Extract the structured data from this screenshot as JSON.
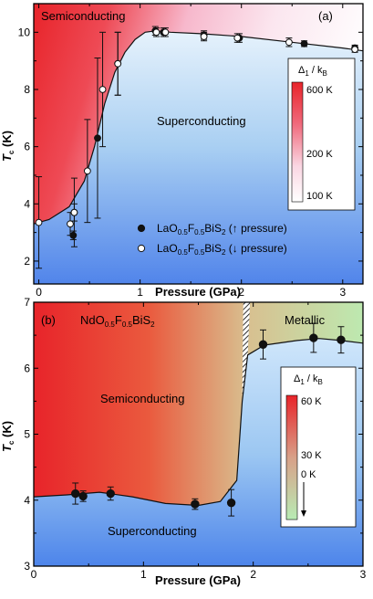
{
  "chart_data": [
    {
      "type": "area",
      "panel_label": "(a)",
      "compound": {
        "pre": "LaO",
        "s1": "0.5",
        "mid": "F",
        "s2": "0.5",
        "post": "BiS",
        "s3": "2"
      },
      "xlabel": "Pressure (GPa)",
      "ylabel_main": "T",
      "ylabel_sub": "c",
      "ylabel_unit": " (K)",
      "xlim": [
        -0.05,
        3.2
      ],
      "ylim": [
        1.2,
        11.0
      ],
      "xticks": [
        "0",
        "1",
        "2",
        "3"
      ],
      "yticks": [
        "2",
        "4",
        "6",
        "8",
        "10"
      ],
      "grid": false,
      "regions": {
        "top_left": "Semiconducting",
        "middle": "Superconducting"
      },
      "colorbar": {
        "title_main": "Δ",
        "title_sub1": "1",
        "title_rest": " / k",
        "title_sub2": "B",
        "labels": [
          "600 K",
          "200 K",
          "100 K"
        ],
        "colors": [
          "#e8242a",
          "#ffffff"
        ]
      },
      "legend": [
        {
          "marker": "filled",
          "direction": "↑ pressure"
        },
        {
          "marker": "open",
          "direction": "↓ pressure"
        }
      ],
      "legend_position": "bottom-right",
      "boundary": {
        "x": [
          -0.05,
          0.0,
          0.1,
          0.3,
          0.45,
          0.55,
          0.65,
          0.75,
          0.85,
          0.95,
          1.05,
          1.15,
          1.3,
          1.6,
          2.0,
          2.5,
          3.0,
          3.2
        ],
        "y": [
          3.3,
          3.35,
          3.45,
          3.9,
          4.8,
          6.0,
          7.5,
          8.6,
          9.3,
          9.75,
          10.0,
          10.05,
          10.0,
          9.95,
          9.85,
          9.65,
          9.45,
          9.35
        ]
      },
      "series": [
        {
          "marker": "filled",
          "x": [
            0.34,
            0.35,
            0.58,
            0.78,
            1.15,
            1.23,
            1.63,
            1.98,
            2.62,
            3.12
          ],
          "y": [
            2.9,
            3.7,
            6.3,
            8.9,
            10.05,
            10.0,
            9.9,
            9.8,
            9.6,
            9.45
          ],
          "err": [
            0.15,
            0.3,
            2.8,
            1.1,
            0.15,
            0.15,
            0.15,
            0.15,
            0.1,
            0.1
          ]
        },
        {
          "marker": "open",
          "x": [
            0.0,
            0.31,
            0.35,
            0.48,
            0.63,
            0.78,
            1.16,
            1.25,
            1.63,
            1.96,
            2.47,
            3.12
          ],
          "y": [
            3.35,
            3.3,
            3.7,
            5.15,
            8.0,
            8.9,
            10.0,
            10.0,
            9.85,
            9.8,
            9.65,
            9.4
          ],
          "err": [
            1.6,
            0.4,
            1.2,
            1.8,
            2.0,
            1.1,
            0.15,
            0.15,
            0.15,
            0.15,
            0.15,
            0.1
          ]
        }
      ]
    },
    {
      "type": "area",
      "panel_label": "(b)",
      "compound": {
        "pre": "NdO",
        "s1": "0.5",
        "mid": "F",
        "s2": "0.5",
        "post": "BiS",
        "s3": "2"
      },
      "xlabel": "Pressure (GPa)",
      "ylabel_main": "T",
      "ylabel_sub": "c",
      "ylabel_unit": " (K)",
      "xlim": [
        0,
        3
      ],
      "ylim": [
        3,
        7
      ],
      "xticks": [
        "0",
        "1",
        "2",
        "3"
      ],
      "yticks": [
        "3",
        "4",
        "5",
        "6",
        "7"
      ],
      "grid": false,
      "regions": {
        "left": "Semiconducting",
        "bottom": "Superconducting",
        "top_right": "Metallic"
      },
      "colorbar": {
        "title_main": "Δ",
        "title_sub1": "1",
        "title_rest": " / k",
        "title_sub2": "B",
        "labels": [
          "60 K",
          "30 K",
          "0 K"
        ],
        "colors": [
          "#e8242a",
          "#b8ecb4"
        ]
      },
      "boundary": {
        "x": [
          0.0,
          0.3,
          0.6,
          0.9,
          1.2,
          1.5,
          1.7,
          1.85,
          1.9,
          1.95,
          2.1,
          2.4,
          2.6,
          2.8,
          3.0
        ],
        "y": [
          4.05,
          4.08,
          4.12,
          4.05,
          3.95,
          3.92,
          3.98,
          4.3,
          5.5,
          6.2,
          6.35,
          6.42,
          6.45,
          6.42,
          6.38
        ]
      },
      "series": [
        {
          "marker": "filled",
          "x": [
            0.38,
            0.45,
            0.7,
            1.47,
            1.8,
            2.09,
            2.55,
            2.8
          ],
          "y": [
            4.1,
            4.06,
            4.1,
            3.94,
            3.96,
            6.36,
            6.46,
            6.43
          ],
          "err": [
            0.16,
            0.08,
            0.1,
            0.08,
            0.2,
            0.22,
            0.22,
            0.2
          ]
        }
      ]
    }
  ]
}
